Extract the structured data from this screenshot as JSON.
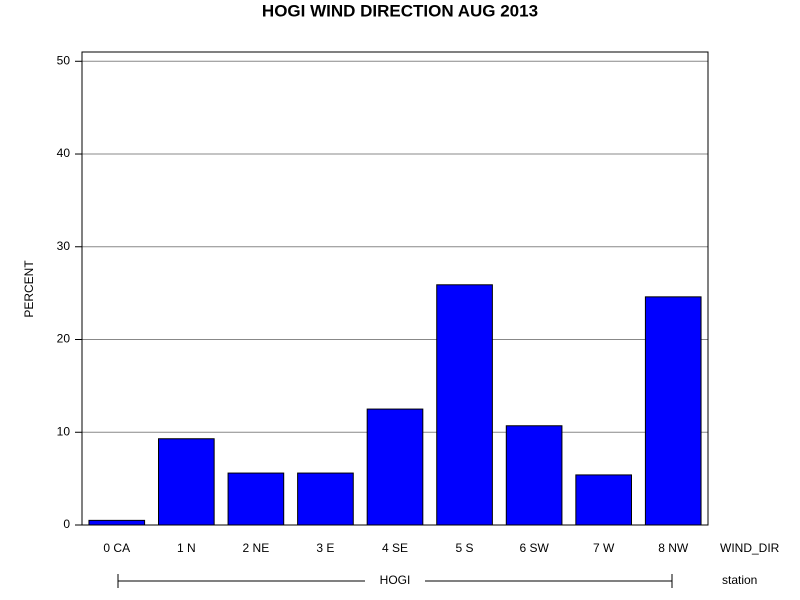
{
  "chart_data": {
    "type": "bar",
    "title": "HOGI WIND DIRECTION AUG 2013",
    "y_label": "PERCENT",
    "x_label": "WIND_DIR",
    "group_label": "station",
    "group": "HOGI",
    "categories": [
      "0 CA",
      "1 N",
      "2 NE",
      "3 E",
      "4 SE",
      "5 S",
      "6 SW",
      "7 W",
      "8 NW"
    ],
    "values": [
      0.5,
      9.3,
      5.6,
      5.6,
      12.5,
      25.9,
      10.7,
      5.4,
      24.6
    ],
    "color": "#0000ff",
    "ylim": [
      0,
      51
    ],
    "yticks": [
      0,
      10,
      20,
      30,
      40,
      50
    ],
    "grid": true
  }
}
